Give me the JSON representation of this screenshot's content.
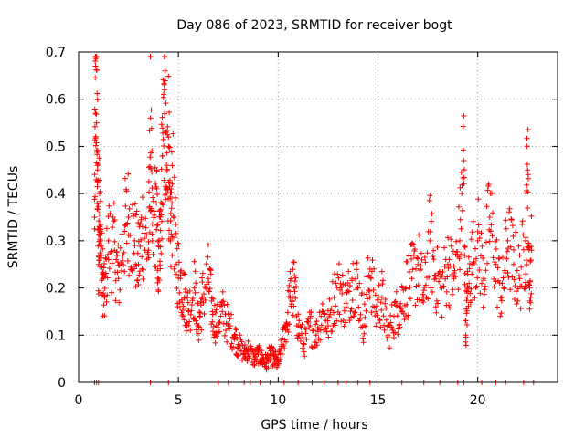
{
  "chart_data": {
    "type": "scatter",
    "title": "Day 086 of 2023, SRMTID for receiver bogt",
    "xlabel": "GPS time / hours",
    "ylabel": "SRMTID / TECUs",
    "xlim": [
      0,
      24
    ],
    "ylim": [
      0,
      0.7
    ],
    "xticks": [
      0,
      5,
      10,
      15,
      20
    ],
    "yticks": [
      0,
      0.1,
      0.2,
      0.3,
      0.4,
      0.5,
      0.6,
      0.7
    ],
    "xtick_labels": [
      "0",
      "5",
      "10",
      "15",
      "20"
    ],
    "ytick_labels": [
      "0",
      "0.1",
      "0.2",
      "0.3",
      "0.4",
      "0.5",
      "0.6",
      "0.7"
    ],
    "grid": true,
    "marker": "+",
    "color": "#ff0000",
    "series": [
      {
        "name": "SRMTID",
        "x": [
          0.8,
          0.85,
          0.9,
          0.95,
          1.0,
          1.05,
          1.1,
          1.2,
          1.3,
          1.5,
          1.8,
          2.0,
          2.3,
          2.5,
          2.8,
          3.0,
          3.2,
          3.5,
          3.6,
          3.7,
          3.9,
          4.0,
          4.1,
          4.2,
          4.3,
          4.4,
          4.5,
          4.6,
          4.7,
          4.9,
          5.1,
          5.3,
          5.5,
          5.8,
          6.0,
          6.2,
          6.5,
          6.7,
          6.9,
          7.2,
          7.5,
          7.8,
          8.0,
          8.3,
          8.5,
          8.8,
          9.0,
          9.2,
          9.4,
          9.6,
          9.8,
          10.0,
          10.2,
          10.4,
          10.6,
          10.8,
          11.0,
          11.3,
          11.6,
          11.9,
          12.2,
          12.5,
          12.8,
          13.1,
          13.4,
          13.7,
          14.0,
          14.3,
          14.6,
          14.9,
          15.2,
          15.5,
          15.8,
          16.1,
          16.4,
          16.7,
          17.0,
          17.3,
          17.6,
          17.9,
          18.2,
          18.5,
          18.8,
          19.1,
          19.3,
          19.4,
          19.5,
          19.7,
          20.0,
          20.3,
          20.6,
          20.9,
          21.2,
          21.5,
          21.8,
          22.1,
          22.4,
          22.5,
          22.6,
          22.7
        ],
        "y": [
          0.35,
          0.67,
          0.55,
          0.45,
          0.25,
          0.4,
          0.3,
          0.22,
          0.18,
          0.3,
          0.28,
          0.22,
          0.32,
          0.35,
          0.3,
          0.25,
          0.33,
          0.28,
          0.56,
          0.3,
          0.38,
          0.22,
          0.35,
          0.48,
          0.62,
          0.4,
          0.52,
          0.3,
          0.42,
          0.25,
          0.22,
          0.18,
          0.15,
          0.2,
          0.12,
          0.18,
          0.22,
          0.15,
          0.12,
          0.15,
          0.12,
          0.1,
          0.08,
          0.06,
          0.07,
          0.05,
          0.06,
          0.05,
          0.04,
          0.06,
          0.05,
          0.04,
          0.08,
          0.12,
          0.18,
          0.2,
          0.12,
          0.08,
          0.12,
          0.1,
          0.15,
          0.12,
          0.18,
          0.2,
          0.16,
          0.22,
          0.2,
          0.12,
          0.24,
          0.15,
          0.18,
          0.1,
          0.14,
          0.16,
          0.2,
          0.22,
          0.25,
          0.18,
          0.3,
          0.22,
          0.2,
          0.25,
          0.22,
          0.3,
          0.47,
          0.1,
          0.2,
          0.25,
          0.3,
          0.22,
          0.35,
          0.25,
          0.18,
          0.3,
          0.25,
          0.22,
          0.3,
          0.45,
          0.2,
          0.28
        ]
      }
    ],
    "zero_x": [
      0.8,
      0.9,
      1.0,
      3.6,
      4.5,
      7.0,
      7.5,
      8.3,
      8.6,
      9.1,
      9.6,
      10.3,
      11.0,
      11.7,
      12.3,
      13.0,
      13.4,
      14.0,
      14.6,
      15.0,
      16.2,
      17.3,
      18.1,
      19.0,
      19.3,
      20.2,
      20.9,
      21.4,
      22.3,
      22.8
    ]
  }
}
